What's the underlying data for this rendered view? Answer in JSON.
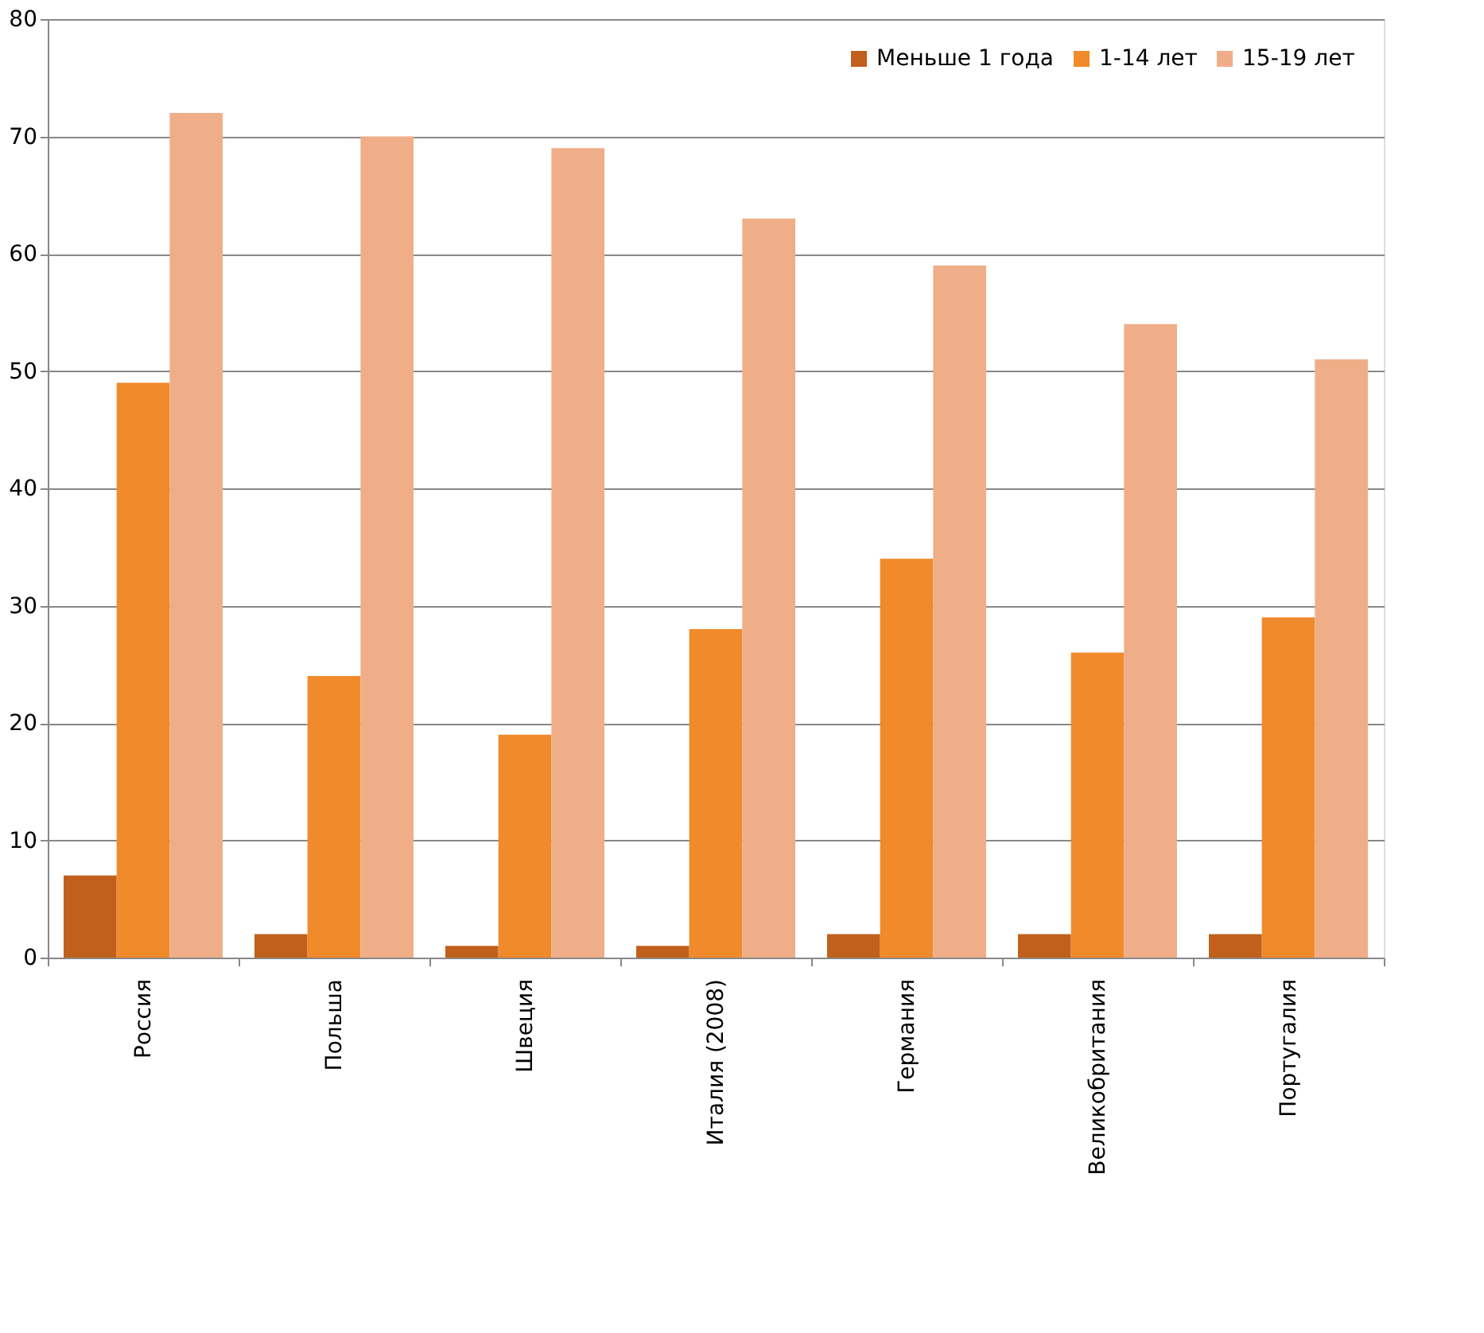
{
  "chart_data": {
    "type": "bar",
    "categories": [
      "Россия",
      "Польша",
      "Швеция",
      "Италия (2008)",
      "Германия",
      "Великобритания",
      "Португалия"
    ],
    "series": [
      {
        "name": "Меньше 1 года",
        "color": "#c0601c",
        "values": [
          7,
          2,
          1,
          1,
          2,
          2,
          2
        ]
      },
      {
        "name": "1-14 лет",
        "color": "#f08a2a",
        "values": [
          49,
          24,
          19,
          28,
          34,
          26,
          29
        ]
      },
      {
        "name": "15-19 лет",
        "color": "#f0ae88",
        "values": [
          72,
          70,
          69,
          63,
          59,
          54,
          51
        ]
      }
    ],
    "ylim": [
      0,
      80
    ],
    "yticks": [
      0,
      10,
      20,
      30,
      40,
      50,
      60,
      70,
      80
    ],
    "grid": "y",
    "legend": "top right"
  }
}
